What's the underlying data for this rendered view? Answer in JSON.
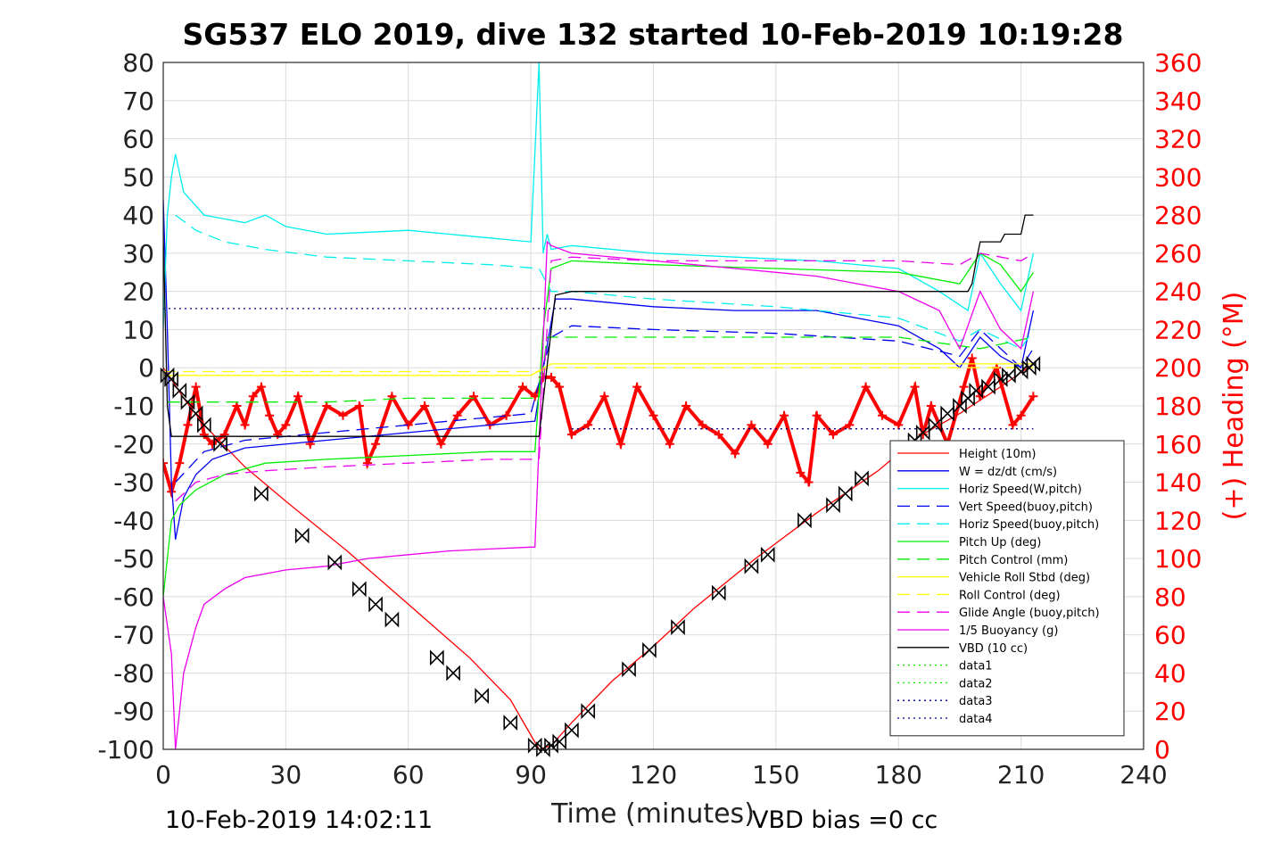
{
  "chart_data": {
    "type": "line",
    "title": "SG537 ELO 2019, dive 132 started 10-Feb-2019 10:19:28",
    "xlabel": "Time (minutes)",
    "ylabel": "",
    "y2label": "(+) Heading (°M)",
    "xlim": [
      0,
      240
    ],
    "ylim": [
      -100,
      80
    ],
    "y2lim": [
      0,
      360
    ],
    "xticks": [
      "0",
      "30",
      "60",
      "90",
      "120",
      "150",
      "180",
      "210",
      "240"
    ],
    "yticks": [
      "80",
      "70",
      "60",
      "50",
      "40",
      "30",
      "20",
      "10",
      "0",
      "-10",
      "-20",
      "-30",
      "-40",
      "-50",
      "-60",
      "-70",
      "-80",
      "-90",
      "-100"
    ],
    "y2ticks": [
      "360",
      "340",
      "320",
      "300",
      "280",
      "260",
      "240",
      "220",
      "200",
      "180",
      "160",
      "140",
      "120",
      "100",
      "80",
      "60",
      "40",
      "20",
      "0"
    ],
    "grid": true,
    "legend_position": "bottom-right",
    "footer_left": "10-Feb-2019 14:02:11",
    "footer_right": "VBD bias =0 cc",
    "colors": {
      "red": "#ff0000",
      "blue": "#0000ee",
      "cyan": "#00eeee",
      "green": "#00ee00",
      "yellow": "#ffff00",
      "magenta": "#ee00ee",
      "black": "#000000"
    },
    "series": [
      {
        "name": "Height (10m)",
        "color": "#ff0000",
        "dash": "solid",
        "x": [
          0,
          2,
          5,
          10,
          20,
          30,
          45,
          60,
          75,
          85,
          92,
          95,
          100,
          110,
          120,
          130,
          145,
          160,
          175,
          185,
          195,
          205,
          213
        ],
        "y": [
          0,
          -3,
          -8,
          -15,
          -26,
          -35,
          -48,
          -62,
          -76,
          -87,
          -100,
          -99,
          -93,
          -82,
          -73,
          -63,
          -50,
          -38,
          -27,
          -18,
          -12,
          -5,
          1
        ]
      },
      {
        "name": "W = dz/dt (cm/s)",
        "color": "#0000ee",
        "dash": "solid",
        "x": [
          0,
          1,
          2,
          3,
          5,
          8,
          12,
          20,
          40,
          60,
          80,
          91,
          93,
          95,
          96,
          100,
          120,
          140,
          160,
          180,
          190,
          195,
          200,
          205,
          210,
          213
        ],
        "y": [
          44,
          10,
          -30,
          -45,
          -34,
          -28,
          -24,
          -21,
          -19,
          -17,
          -15,
          -14,
          0,
          12,
          18,
          18,
          16,
          15,
          15,
          11,
          5,
          0,
          8,
          3,
          0,
          15
        ]
      },
      {
        "name": "Horiz Speed(W,pitch)",
        "color": "#00eeee",
        "dash": "solid",
        "x": [
          0,
          1,
          2,
          3,
          5,
          10,
          20,
          25,
          30,
          40,
          60,
          80,
          90,
          92,
          93,
          94,
          95,
          100,
          120,
          140,
          160,
          180,
          190,
          197,
          200,
          205,
          210,
          213
        ],
        "y": [
          10,
          40,
          50,
          56,
          46,
          40,
          38,
          40,
          37,
          35,
          36,
          34,
          33,
          80,
          30,
          35,
          31,
          32,
          30,
          29,
          28,
          26,
          20,
          15,
          30,
          22,
          15,
          30
        ]
      },
      {
        "name": "Vert Speed(buoy,pitch)",
        "color": "#0000ee",
        "dash": "dashed",
        "x": [
          3,
          10,
          20,
          40,
          60,
          80,
          90,
          95,
          100,
          120,
          150,
          180,
          195,
          200,
          210,
          213
        ],
        "y": [
          -30,
          -22,
          -19,
          -17,
          -15,
          -13,
          -12,
          8,
          11,
          10,
          9,
          7,
          3,
          10,
          0,
          5
        ]
      },
      {
        "name": "Horiz Speed(buoy,pitch)",
        "color": "#00eeee",
        "dash": "dashed",
        "x": [
          3,
          8,
          15,
          25,
          40,
          60,
          80,
          92,
          95,
          100,
          120,
          150,
          180,
          195,
          200,
          210,
          213
        ],
        "y": [
          40,
          36,
          33,
          31,
          29,
          28,
          27,
          26,
          20,
          20,
          18,
          16,
          13,
          7,
          10,
          5,
          10
        ]
      },
      {
        "name": "Pitch Up (deg)",
        "color": "#00ee00",
        "dash": "solid",
        "x": [
          0,
          2,
          4,
          8,
          15,
          25,
          40,
          60,
          80,
          91,
          93,
          95,
          100,
          120,
          150,
          180,
          195,
          200,
          205,
          210,
          213
        ],
        "y": [
          -60,
          -40,
          -36,
          -32,
          -28,
          -25,
          -24,
          -23,
          -22,
          -22,
          10,
          26,
          28,
          27,
          26,
          25,
          22,
          30,
          27,
          20,
          25
        ]
      },
      {
        "name": "Pitch Control (mm)",
        "color": "#00ee00",
        "dash": "dashed",
        "x": [
          1,
          20,
          40,
          60,
          80,
          92,
          94,
          120,
          150,
          180,
          200,
          213
        ],
        "y": [
          -9,
          -9,
          -9,
          -8,
          -8,
          -8,
          8,
          8,
          8,
          8,
          5,
          8
        ]
      },
      {
        "name": "Vehicle Roll Stbd (deg)",
        "color": "#ffff00",
        "dash": "solid",
        "x": [
          0,
          5,
          10,
          20,
          30,
          40,
          50,
          60,
          70,
          80,
          90,
          95,
          100,
          110,
          120,
          130,
          140,
          150,
          160,
          170,
          180,
          190,
          200,
          210,
          213
        ],
        "y": [
          -2,
          -2,
          -2,
          -2,
          -2,
          -2,
          -2,
          -2,
          -2,
          -2,
          -2,
          1,
          1,
          1,
          1,
          1,
          1,
          1,
          1,
          1,
          1,
          1,
          1,
          1,
          1
        ]
      },
      {
        "name": "Roll Control (deg)",
        "color": "#ffff00",
        "dash": "dashed",
        "x": [
          0,
          20,
          40,
          60,
          80,
          92,
          95,
          120,
          150,
          180,
          200,
          213
        ],
        "y": [
          -1,
          -1,
          -1,
          -1,
          -1,
          -1,
          0,
          0,
          0,
          0,
          0,
          0
        ]
      },
      {
        "name": "Glide Angle (buoy,pitch)",
        "color": "#ee00ee",
        "dash": "dashed",
        "x": [
          3,
          8,
          15,
          25,
          40,
          60,
          80,
          92,
          95,
          100,
          120,
          150,
          180,
          195,
          200,
          210,
          213
        ],
        "y": [
          -35,
          -30,
          -28,
          -27,
          -26,
          -25,
          -24,
          -24,
          28,
          29,
          28,
          28,
          28,
          27,
          30,
          28,
          30
        ]
      },
      {
        "name": "1/5 Buoyancy (g)",
        "color": "#ee00ee",
        "dash": "solid",
        "x": [
          0,
          2,
          3,
          5,
          8,
          10,
          15,
          20,
          30,
          40,
          50,
          60,
          70,
          80,
          90,
          91,
          94,
          95,
          100,
          120,
          140,
          160,
          180,
          190,
          195,
          200,
          205,
          210,
          213
        ],
        "y": [
          -60,
          -75,
          -100,
          -80,
          -68,
          -62,
          -58,
          -55,
          -53,
          -52,
          -50,
          -49,
          -48,
          -47.5,
          -47,
          -47,
          33,
          32,
          30,
          28,
          26,
          24,
          20,
          15,
          5,
          20,
          10,
          5,
          20
        ]
      },
      {
        "name": "VBD (10 cc)",
        "color": "#000000",
        "dash": "solid",
        "x": [
          0,
          1,
          2,
          4,
          92,
          95,
          96,
          100,
          197,
          198,
          199,
          200,
          205,
          206,
          210,
          211,
          213
        ],
        "y": [
          35,
          -10,
          -18,
          -18,
          -18,
          10,
          19,
          20,
          20,
          22,
          28,
          33,
          33,
          35,
          35,
          40,
          40
        ]
      },
      {
        "name": "data1",
        "color": "#00ee00",
        "dash": "dotted",
        "x": [],
        "y": []
      },
      {
        "name": "data2",
        "color": "#00ee00",
        "dash": "dotted",
        "x": [],
        "y": []
      },
      {
        "name": "data3",
        "color": "#000080",
        "dash": "dotted",
        "x": [
          0,
          100
        ],
        "y": [
          15.5,
          15.5
        ]
      },
      {
        "name": "data4",
        "color": "#000080",
        "dash": "dotted",
        "x": [
          100,
          213
        ],
        "y": [
          -16,
          -16
        ]
      }
    ],
    "heading_series": {
      "name": "Heading",
      "axis": "right",
      "color": "#ff0000",
      "marker": "+",
      "x": [
        0,
        2,
        4,
        6,
        8,
        10,
        12,
        15,
        18,
        20,
        22,
        24,
        26,
        28,
        30,
        33,
        36,
        40,
        44,
        48,
        50,
        52,
        56,
        60,
        64,
        68,
        72,
        76,
        80,
        84,
        88,
        91,
        93,
        95,
        97,
        100,
        104,
        108,
        112,
        116,
        120,
        124,
        128,
        132,
        136,
        140,
        144,
        148,
        152,
        156,
        158,
        160,
        164,
        168,
        172,
        176,
        180,
        184,
        186,
        188,
        192,
        196,
        198,
        200,
        204,
        208,
        210,
        213
      ],
      "y": [
        150,
        135,
        150,
        170,
        190,
        165,
        160,
        165,
        180,
        170,
        185,
        190,
        175,
        165,
        170,
        185,
        160,
        180,
        175,
        180,
        150,
        160,
        185,
        170,
        180,
        160,
        175,
        185,
        170,
        175,
        190,
        185,
        195,
        195,
        190,
        165,
        170,
        185,
        160,
        190,
        175,
        160,
        180,
        170,
        165,
        155,
        170,
        160,
        175,
        145,
        140,
        175,
        165,
        170,
        190,
        175,
        170,
        190,
        165,
        180,
        160,
        190,
        205,
        185,
        200,
        170,
        175,
        185
      ]
    },
    "markers": {
      "name": "Dive markers",
      "color": "#000000",
      "x": [
        1,
        2,
        4,
        6,
        8,
        10,
        14,
        24,
        34,
        42,
        48,
        52,
        56,
        67,
        71,
        78,
        85,
        91,
        93,
        95,
        97,
        100,
        104,
        114,
        119,
        126,
        136,
        144,
        148,
        157,
        164,
        167,
        171,
        182,
        184,
        186,
        189,
        192,
        195,
        197,
        199,
        202,
        205,
        207,
        210,
        212,
        213
      ],
      "y": [
        -2,
        -3,
        -6,
        -9,
        -12,
        -15,
        -20,
        -33,
        -44,
        -51,
        -58,
        -62,
        -66,
        -76,
        -80,
        -86,
        -93,
        -99,
        -100,
        -99,
        -98,
        -95,
        -90,
        -79,
        -74,
        -68,
        -59,
        -52,
        -49,
        -40,
        -36,
        -33,
        -29,
        -21,
        -19,
        -17,
        -15,
        -12,
        -10,
        -8,
        -6,
        -5,
        -3,
        -2,
        -1,
        0,
        1
      ]
    }
  }
}
